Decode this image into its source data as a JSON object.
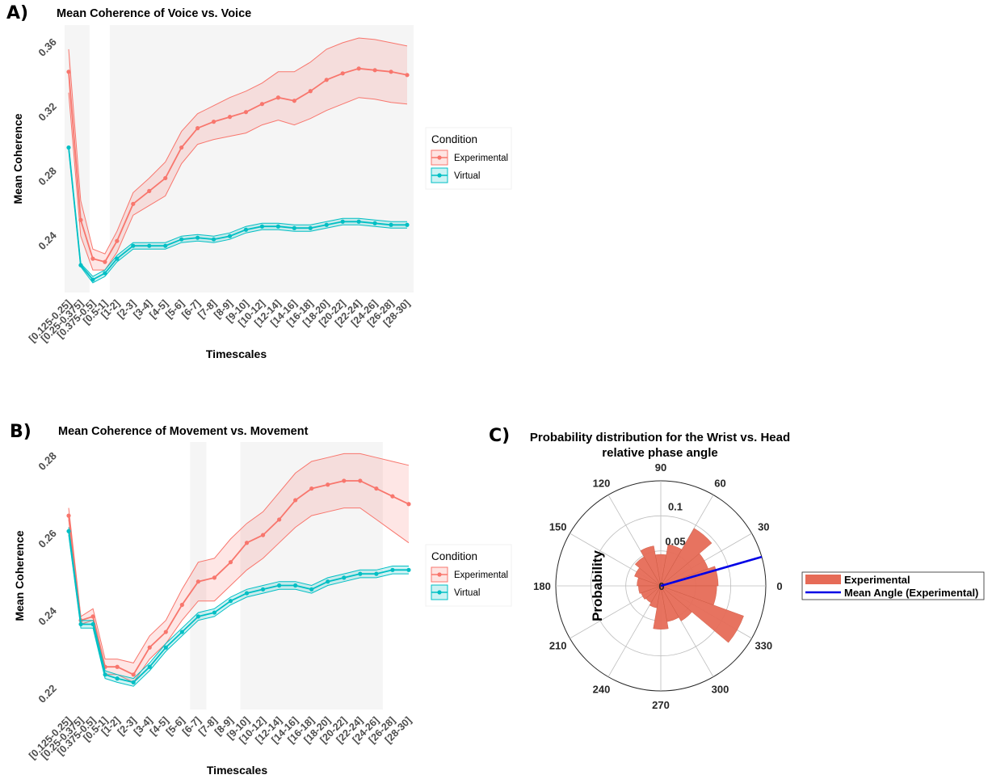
{
  "panels": {
    "a_label": "A)",
    "b_label": "B)",
    "c_label": "C)"
  },
  "chart_data": [
    {
      "id": "A",
      "type": "line",
      "title": "Mean Coherence of Voice vs. Voice",
      "xlabel": "Timescales",
      "ylabel": "Mean Coherence",
      "ylim": [
        0.208,
        0.374
      ],
      "yticks": [
        0.24,
        0.28,
        0.32,
        0.36
      ],
      "ytick_labels": [
        "0.24",
        "0.28",
        "0.32",
        "0.36"
      ],
      "categories": [
        "[0.125-0.25]",
        "[0.25-0.375]",
        "[0.375-0.5]",
        "[0.5-1]",
        "[1-2]",
        "[2-3]",
        "[3-4]",
        "[4-5]",
        "[5-6]",
        "[6-7]",
        "[7-8]",
        "[8-9]",
        "[9-10]",
        "[10-12]",
        "[12-14]",
        "[14-16]",
        "[16-18]",
        "[18-20]",
        "[20-22]",
        "[22-24]",
        "[24-26]",
        "[26-28]",
        "[28-30]"
      ],
      "x_positions": [
        1,
        1.75,
        2.5,
        3.25,
        4,
        5,
        6,
        7,
        8,
        9,
        10,
        11,
        12,
        13,
        14,
        15,
        16,
        17,
        18,
        19,
        20,
        21,
        22
      ],
      "shaded_ranges": [
        [
          0.75,
          2.3
        ],
        [
          3.55,
          22.4
        ]
      ],
      "legend": {
        "title": "Condition",
        "placement": "right"
      },
      "series": [
        {
          "name": "Experimental",
          "color": "#F8766D",
          "values": [
            0.345,
            0.253,
            0.229,
            0.227,
            0.24,
            0.263,
            0.271,
            0.279,
            0.298,
            0.31,
            0.314,
            0.317,
            0.32,
            0.325,
            0.329,
            0.327,
            0.333,
            0.34,
            0.344,
            0.347,
            0.346,
            0.345,
            0.343
          ],
          "lower": [
            0.332,
            0.243,
            0.222,
            0.222,
            0.233,
            0.256,
            0.262,
            0.268,
            0.288,
            0.3,
            0.303,
            0.305,
            0.307,
            0.312,
            0.315,
            0.312,
            0.316,
            0.321,
            0.325,
            0.329,
            0.328,
            0.326,
            0.325
          ],
          "upper": [
            0.359,
            0.265,
            0.235,
            0.232,
            0.246,
            0.27,
            0.279,
            0.289,
            0.308,
            0.319,
            0.324,
            0.329,
            0.333,
            0.338,
            0.345,
            0.345,
            0.351,
            0.359,
            0.363,
            0.366,
            0.365,
            0.363,
            0.361
          ]
        },
        {
          "name": "Virtual",
          "color": "#00BFC4",
          "values": [
            0.298,
            0.225,
            0.216,
            0.22,
            0.229,
            0.237,
            0.237,
            0.237,
            0.241,
            0.242,
            0.241,
            0.243,
            0.247,
            0.249,
            0.249,
            0.248,
            0.248,
            0.25,
            0.252,
            0.252,
            0.251,
            0.25,
            0.25
          ],
          "lower": [
            0.297,
            0.224,
            0.214,
            0.218,
            0.227,
            0.235,
            0.235,
            0.235,
            0.239,
            0.24,
            0.239,
            0.241,
            0.245,
            0.247,
            0.247,
            0.246,
            0.246,
            0.248,
            0.25,
            0.25,
            0.249,
            0.248,
            0.248
          ],
          "upper": [
            0.299,
            0.226,
            0.218,
            0.222,
            0.231,
            0.239,
            0.239,
            0.239,
            0.243,
            0.244,
            0.243,
            0.245,
            0.249,
            0.251,
            0.251,
            0.25,
            0.25,
            0.252,
            0.254,
            0.254,
            0.253,
            0.252,
            0.252
          ]
        }
      ]
    },
    {
      "id": "B",
      "type": "line",
      "title": "Mean Coherence of Movement vs. Movement",
      "xlabel": "Timescales",
      "ylabel": "Mean Coherence",
      "ylim": [
        0.216,
        0.285
      ],
      "yticks": [
        0.22,
        0.24,
        0.26,
        0.28
      ],
      "ytick_labels": [
        "0.22",
        "0.24",
        "0.26",
        "0.28"
      ],
      "categories": [
        "[0.125-0.25]",
        "[0.25-0.375]",
        "[0.375-0.5]",
        "[0.5-1]",
        "[1-2]",
        "[2-3]",
        "[3-4]",
        "[4-5]",
        "[5-6]",
        "[6-7]",
        "[7-8]",
        "[8-9]",
        "[9-10]",
        "[10-12]",
        "[12-14]",
        "[14-16]",
        "[16-18]",
        "[18-20]",
        "[20-22]",
        "[22-24]",
        "[24-26]",
        "[26-28]",
        "[28-30]"
      ],
      "x_positions": [
        1,
        1.75,
        2.5,
        3.25,
        4,
        5,
        6,
        7,
        8,
        9,
        10,
        11,
        12,
        13,
        14,
        15,
        16,
        17,
        18,
        19,
        20,
        21,
        22
      ],
      "shaded_ranges": [
        [
          8.5,
          9.5
        ],
        [
          11.6,
          20.4
        ]
      ],
      "legend": {
        "title": "Condition",
        "placement": "right"
      },
      "series": [
        {
          "name": "Experimental",
          "color": "#F8766D",
          "values": [
            0.266,
            0.239,
            0.24,
            0.227,
            0.227,
            0.225,
            0.232,
            0.236,
            0.243,
            0.249,
            0.25,
            0.254,
            0.259,
            0.261,
            0.265,
            0.27,
            0.273,
            0.274,
            0.275,
            0.275,
            0.273,
            0.271,
            0.269
          ],
          "lower": [
            0.265,
            0.238,
            0.239,
            0.225,
            0.225,
            0.223,
            0.229,
            0.233,
            0.239,
            0.244,
            0.244,
            0.248,
            0.252,
            0.255,
            0.259,
            0.263,
            0.266,
            0.267,
            0.268,
            0.268,
            0.265,
            0.262,
            0.259
          ],
          "upper": [
            0.268,
            0.24,
            0.242,
            0.229,
            0.229,
            0.228,
            0.235,
            0.239,
            0.247,
            0.254,
            0.255,
            0.26,
            0.264,
            0.267,
            0.272,
            0.277,
            0.28,
            0.281,
            0.282,
            0.282,
            0.281,
            0.28,
            0.279
          ]
        },
        {
          "name": "Virtual",
          "color": "#00BFC4",
          "values": [
            0.262,
            0.238,
            0.238,
            0.225,
            0.224,
            0.223,
            0.227,
            0.232,
            0.236,
            0.24,
            0.241,
            0.244,
            0.246,
            0.247,
            0.248,
            0.248,
            0.247,
            0.249,
            0.25,
            0.251,
            0.251,
            0.252,
            0.252
          ],
          "lower": [
            0.261,
            0.237,
            0.237,
            0.224,
            0.223,
            0.222,
            0.226,
            0.231,
            0.235,
            0.239,
            0.24,
            0.243,
            0.245,
            0.246,
            0.247,
            0.247,
            0.246,
            0.248,
            0.249,
            0.25,
            0.25,
            0.251,
            0.251
          ],
          "upper": [
            0.263,
            0.239,
            0.239,
            0.226,
            0.225,
            0.224,
            0.228,
            0.233,
            0.237,
            0.241,
            0.242,
            0.245,
            0.247,
            0.248,
            0.249,
            0.249,
            0.248,
            0.25,
            0.251,
            0.252,
            0.252,
            0.253,
            0.253
          ]
        }
      ]
    },
    {
      "id": "C",
      "type": "polar_histogram",
      "title_line1": "Probability distribution for the Wrist vs. Head",
      "title_line2": "relative phase angle",
      "rlabel": "Probability",
      "rmax": 0.15,
      "rticks": [
        0.05,
        0.1
      ],
      "rtick_labels": [
        "0.05",
        "0.1"
      ],
      "angle_ticks": [
        0,
        30,
        60,
        90,
        120,
        150,
        180,
        210,
        240,
        270,
        300,
        330
      ],
      "angle_labels": [
        "0",
        "30",
        "60",
        "90",
        "120",
        "150",
        "180",
        "210",
        "240",
        "270",
        "300",
        "330"
      ],
      "bin_width_deg": 20,
      "bin_centers": [
        10,
        30,
        50,
        70,
        90,
        110,
        130,
        150,
        170,
        190,
        210,
        230,
        250,
        270,
        290,
        310,
        330,
        350
      ],
      "values": [
        0.082,
        0.072,
        0.095,
        0.06,
        0.045,
        0.058,
        0.048,
        0.04,
        0.034,
        0.032,
        0.03,
        0.028,
        0.032,
        0.062,
        0.052,
        0.058,
        0.126,
        0.08
      ],
      "bar_color": "#E66B57",
      "mean_angle_deg": 16,
      "mean_color": "#0000E6",
      "legend_entries": [
        "Experimental",
        "Mean Angle (Experimental)"
      ]
    }
  ]
}
